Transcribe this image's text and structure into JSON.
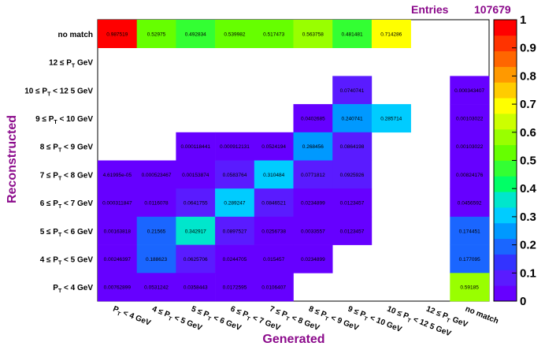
{
  "stats": {
    "label": "Entries",
    "value": "107679"
  },
  "colors": {
    "axis_title": "#8b0a8b",
    "palette": [
      "#6600ff",
      "#5a1bff",
      "#3333ff",
      "#1a66ff",
      "#0099ff",
      "#00ccff",
      "#00e6cc",
      "#00ff66",
      "#33ff33",
      "#66ff00",
      "#99ff00",
      "#ccff00",
      "#ffff00",
      "#ffcc00",
      "#ff9900",
      "#ff6600",
      "#ff3300",
      "#ff0000"
    ]
  },
  "chart_data": {
    "type": "heatmap",
    "xlabel": "Generated",
    "ylabel": "Reconstructed",
    "zlim": [
      0,
      1
    ],
    "colorbar_ticks": [
      "0",
      "0.1",
      "0.2",
      "0.3",
      "0.4",
      "0.5",
      "0.6",
      "0.7",
      "0.8",
      "0.9",
      "1"
    ],
    "x_categories": [
      {
        "main": "P",
        "sub": "T",
        "rest": " < 4 GeV"
      },
      {
        "main": "4 ≤ P",
        "sub": "T",
        "rest": " < 5 GeV"
      },
      {
        "main": "5 ≤ P",
        "sub": "T",
        "rest": " < 6 GeV"
      },
      {
        "main": "6 ≤ P",
        "sub": "T",
        "rest": " < 7 GeV"
      },
      {
        "main": "7 ≤ P",
        "sub": "T",
        "rest": " < 8 GeV"
      },
      {
        "main": "8 ≤ P",
        "sub": "T",
        "rest": " < 9 GeV"
      },
      {
        "main": "9 ≤ P",
        "sub": "T",
        "rest": " < 10 GeV"
      },
      {
        "main": "10 ≤ P",
        "sub": "T",
        "rest": " < 12 5 GeV"
      },
      {
        "main": "12 ≤ P",
        "sub": "T",
        "rest": " GeV"
      },
      {
        "main": "no match",
        "sub": "",
        "rest": ""
      }
    ],
    "y_categories": [
      {
        "main": "no match",
        "sub": "",
        "rest": ""
      },
      {
        "main": "12 ≤ P",
        "sub": "T",
        "rest": " GeV"
      },
      {
        "main": "10 ≤ P",
        "sub": "T",
        "rest": " < 12 5 GeV"
      },
      {
        "main": "9 ≤ P",
        "sub": "T",
        "rest": " < 10 GeV"
      },
      {
        "main": "8 ≤ P",
        "sub": "T",
        "rest": " < 9 GeV"
      },
      {
        "main": "7 ≤ P",
        "sub": "T",
        "rest": " < 8 GeV"
      },
      {
        "main": "6 ≤ P",
        "sub": "T",
        "rest": " < 7 GeV"
      },
      {
        "main": "5 ≤ P",
        "sub": "T",
        "rest": " < 6 GeV"
      },
      {
        "main": "4 ≤ P",
        "sub": "T",
        "rest": " < 5 GeV"
      },
      {
        "main": "P",
        "sub": "T",
        "rest": " < 4 GeV"
      }
    ],
    "cells": [
      {
        "row": 0,
        "col": 0,
        "label": "0.987519",
        "value": 0.987519
      },
      {
        "row": 0,
        "col": 1,
        "label": "0.52975",
        "value": 0.52975
      },
      {
        "row": 0,
        "col": 2,
        "label": "0.492834",
        "value": 0.492834
      },
      {
        "row": 0,
        "col": 3,
        "label": "0.539982",
        "value": 0.539982
      },
      {
        "row": 0,
        "col": 4,
        "label": "0.517473",
        "value": 0.517473
      },
      {
        "row": 0,
        "col": 5,
        "label": "0.563758",
        "value": 0.563758
      },
      {
        "row": 0,
        "col": 6,
        "label": "0.481481",
        "value": 0.481481
      },
      {
        "row": 0,
        "col": 7,
        "label": "0.714286",
        "value": 0.714286
      },
      {
        "row": 2,
        "col": 6,
        "label": "0.0740741",
        "value": 0.0740741
      },
      {
        "row": 2,
        "col": 9,
        "label": "0.000343407",
        "value": 0.000343407
      },
      {
        "row": 3,
        "col": 5,
        "label": "0.0402685",
        "value": 0.0402685
      },
      {
        "row": 3,
        "col": 6,
        "label": "0.240741",
        "value": 0.240741
      },
      {
        "row": 3,
        "col": 7,
        "label": "0.285714",
        "value": 0.285714
      },
      {
        "row": 3,
        "col": 9,
        "label": "0.00103022",
        "value": 0.00103022
      },
      {
        "row": 4,
        "col": 2,
        "label": "0.000118441",
        "value": 0.000118441
      },
      {
        "row": 4,
        "col": 3,
        "label": "0.000912131",
        "value": 0.000912131
      },
      {
        "row": 4,
        "col": 4,
        "label": "0.0524194",
        "value": 0.0524194
      },
      {
        "row": 4,
        "col": 5,
        "label": "0.268456",
        "value": 0.268456
      },
      {
        "row": 4,
        "col": 6,
        "label": "0.0864198",
        "value": 0.0864198
      },
      {
        "row": 4,
        "col": 9,
        "label": "0.00103022",
        "value": 0.00103022
      },
      {
        "row": 5,
        "col": 0,
        "label": "4.61995e-05",
        "value": 4.61995e-05
      },
      {
        "row": 5,
        "col": 1,
        "label": "0.000523467",
        "value": 0.000523467
      },
      {
        "row": 5,
        "col": 2,
        "label": "0.00153874",
        "value": 0.00153874
      },
      {
        "row": 5,
        "col": 3,
        "label": "0.0583764",
        "value": 0.0583764
      },
      {
        "row": 5,
        "col": 4,
        "label": "0.310484",
        "value": 0.310484
      },
      {
        "row": 5,
        "col": 5,
        "label": "0.0771812",
        "value": 0.0771812
      },
      {
        "row": 5,
        "col": 6,
        "label": "0.0925926",
        "value": 0.0925926
      },
      {
        "row": 5,
        "col": 9,
        "label": "0.00824176",
        "value": 0.00824176
      },
      {
        "row": 6,
        "col": 0,
        "label": "0.000311847",
        "value": 0.000311847
      },
      {
        "row": 6,
        "col": 1,
        "label": "0.0116078",
        "value": 0.0116078
      },
      {
        "row": 6,
        "col": 2,
        "label": "0.0641755",
        "value": 0.0641755
      },
      {
        "row": 6,
        "col": 3,
        "label": "0.289247",
        "value": 0.289247
      },
      {
        "row": 6,
        "col": 4,
        "label": "0.0846521",
        "value": 0.0846521
      },
      {
        "row": 6,
        "col": 5,
        "label": "0.0234899",
        "value": 0.0234899
      },
      {
        "row": 6,
        "col": 6,
        "label": "0.0123457",
        "value": 0.0123457
      },
      {
        "row": 6,
        "col": 9,
        "label": "0.0456592",
        "value": 0.0456592
      },
      {
        "row": 7,
        "col": 0,
        "label": "0.00163818",
        "value": 0.00163818
      },
      {
        "row": 7,
        "col": 1,
        "label": "0.21565",
        "value": 0.21565
      },
      {
        "row": 7,
        "col": 2,
        "label": "0.342917",
        "value": 0.342917
      },
      {
        "row": 7,
        "col": 3,
        "label": "0.0897527",
        "value": 0.0897527
      },
      {
        "row": 7,
        "col": 4,
        "label": "0.0256738",
        "value": 0.0256738
      },
      {
        "row": 7,
        "col": 5,
        "label": "0.0033557",
        "value": 0.0033557
      },
      {
        "row": 7,
        "col": 6,
        "label": "0.0123457",
        "value": 0.0123457
      },
      {
        "row": 7,
        "col": 9,
        "label": "0.174451",
        "value": 0.174451
      },
      {
        "row": 8,
        "col": 0,
        "label": "0.00246397",
        "value": 0.00246397
      },
      {
        "row": 8,
        "col": 1,
        "label": "0.188623",
        "value": 0.188623
      },
      {
        "row": 8,
        "col": 2,
        "label": "0.0625706",
        "value": 0.0625706
      },
      {
        "row": 8,
        "col": 3,
        "label": "0.0244705",
        "value": 0.0244705
      },
      {
        "row": 8,
        "col": 4,
        "label": "0.015457",
        "value": 0.015457
      },
      {
        "row": 8,
        "col": 5,
        "label": "0.0234899",
        "value": 0.0234899
      },
      {
        "row": 8,
        "col": 9,
        "label": "0.177095",
        "value": 0.177095
      },
      {
        "row": 9,
        "col": 0,
        "label": "0.00762899",
        "value": 0.00762899
      },
      {
        "row": 9,
        "col": 1,
        "label": "0.0531242",
        "value": 0.0531242
      },
      {
        "row": 9,
        "col": 2,
        "label": "0.0358443",
        "value": 0.0358443
      },
      {
        "row": 9,
        "col": 3,
        "label": "0.0172595",
        "value": 0.0172595
      },
      {
        "row": 9,
        "col": 4,
        "label": "0.0106407",
        "value": 0.0106407
      },
      {
        "row": 9,
        "col": 9,
        "label": "0.59185",
        "value": 0.59185
      }
    ]
  }
}
